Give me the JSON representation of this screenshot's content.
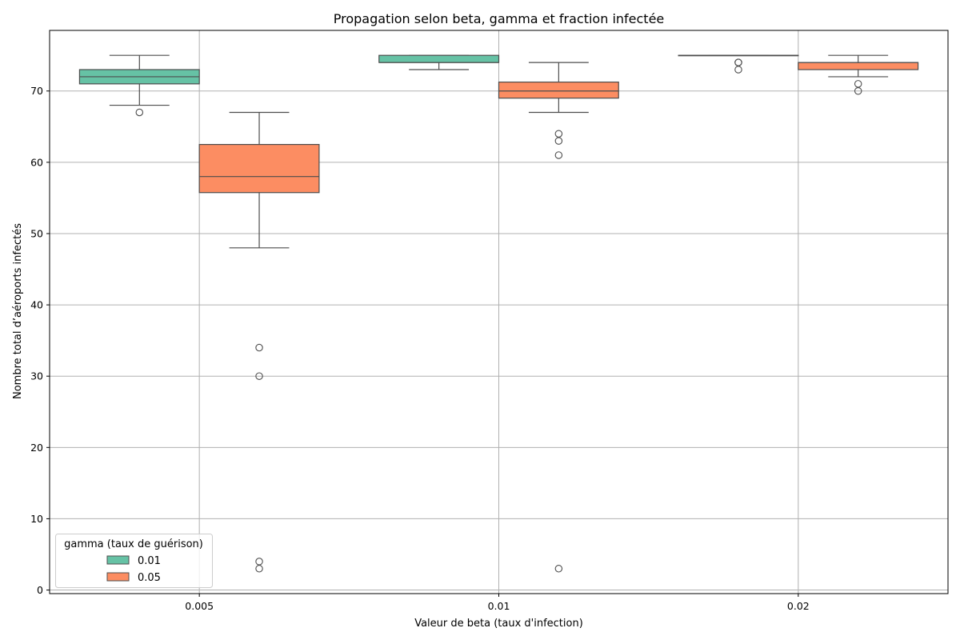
{
  "chart_data": {
    "type": "boxplot",
    "title": "Propagation selon beta, gamma et fraction infectée",
    "xlabel": "Valeur de beta (taux d'infection)",
    "ylabel": "Nombre total d’aéroports infectés",
    "categories": [
      "0.005",
      "0.01",
      "0.02"
    ],
    "ylim": [
      -0.5,
      78.5
    ],
    "yticks": [
      0,
      10,
      20,
      30,
      40,
      50,
      60,
      70
    ],
    "grid": true,
    "legend": {
      "title": "gamma (taux de guérison)",
      "position": "lower-left"
    },
    "series": [
      {
        "name": "0.01",
        "color": "#66c2a5",
        "boxes": [
          {
            "category": "0.005",
            "q1": 71,
            "median": 72,
            "q3": 73,
            "whisker_low": 68,
            "whisker_high": 75,
            "outliers": [
              67
            ]
          },
          {
            "category": "0.01",
            "q1": 74,
            "median": 74,
            "q3": 75,
            "whisker_low": 73,
            "whisker_high": 75,
            "outliers": []
          },
          {
            "category": "0.02",
            "q1": 75,
            "median": 75,
            "q3": 75,
            "whisker_low": 75,
            "whisker_high": 75,
            "outliers": [
              74,
              74,
              73
            ]
          }
        ]
      },
      {
        "name": "0.05",
        "color": "#fc8d62",
        "boxes": [
          {
            "category": "0.005",
            "q1": 55.75,
            "median": 58,
            "q3": 62.5,
            "whisker_low": 48,
            "whisker_high": 67,
            "outliers": [
              34,
              30,
              4,
              3
            ]
          },
          {
            "category": "0.01",
            "q1": 69,
            "median": 70,
            "q3": 71.25,
            "whisker_low": 67,
            "whisker_high": 74,
            "outliers": [
              64,
              63,
              61,
              3
            ]
          },
          {
            "category": "0.02",
            "q1": 73,
            "median": 74,
            "q3": 74,
            "whisker_low": 72,
            "whisker_high": 75,
            "outliers": [
              71,
              70
            ]
          }
        ]
      }
    ]
  }
}
